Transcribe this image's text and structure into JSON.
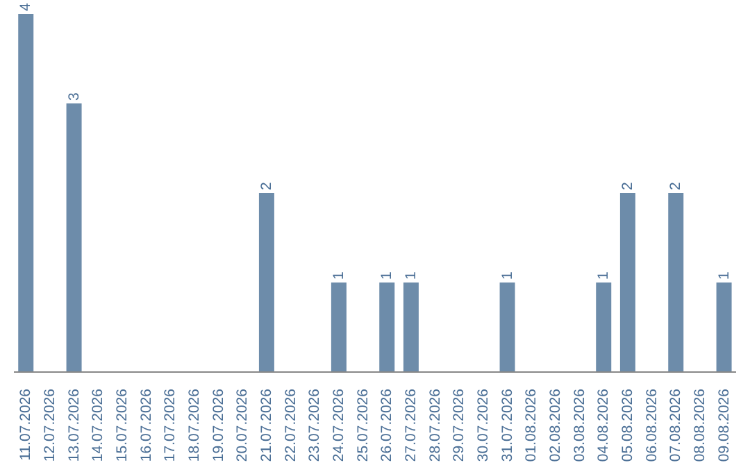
{
  "chart_data": {
    "type": "bar",
    "categories": [
      "11.07.2026",
      "12.07.2026",
      "13.07.2026",
      "14.07.2026",
      "15.07.2026",
      "16.07.2026",
      "17.07.2026",
      "18.07.2026",
      "19.07.2026",
      "20.07.2026",
      "21.07.2026",
      "22.07.2026",
      "23.07.2026",
      "24.07.2026",
      "25.07.2026",
      "26.07.2026",
      "27.07.2026",
      "28.07.2026",
      "29.07.2026",
      "30.07.2026",
      "31.07.2026",
      "01.08.2026",
      "02.08.2026",
      "03.08.2026",
      "04.08.2026",
      "05.08.2026",
      "06.08.2026",
      "07.08.2026",
      "08.08.2026",
      "09.08.2026"
    ],
    "values": [
      4,
      0,
      3,
      0,
      0,
      0,
      0,
      0,
      0,
      0,
      2,
      0,
      0,
      1,
      0,
      1,
      1,
      0,
      0,
      0,
      1,
      0,
      0,
      0,
      1,
      2,
      0,
      2,
      0,
      1
    ],
    "value_labels": [
      "4",
      null,
      "3",
      null,
      null,
      null,
      null,
      null,
      null,
      null,
      "2",
      null,
      null,
      "1",
      null,
      "1",
      "1",
      null,
      null,
      null,
      "1",
      null,
      null,
      null,
      "1",
      "2",
      null,
      "2",
      null,
      "1"
    ],
    "color": "#6d8caa",
    "tick_labels": "x"
  }
}
